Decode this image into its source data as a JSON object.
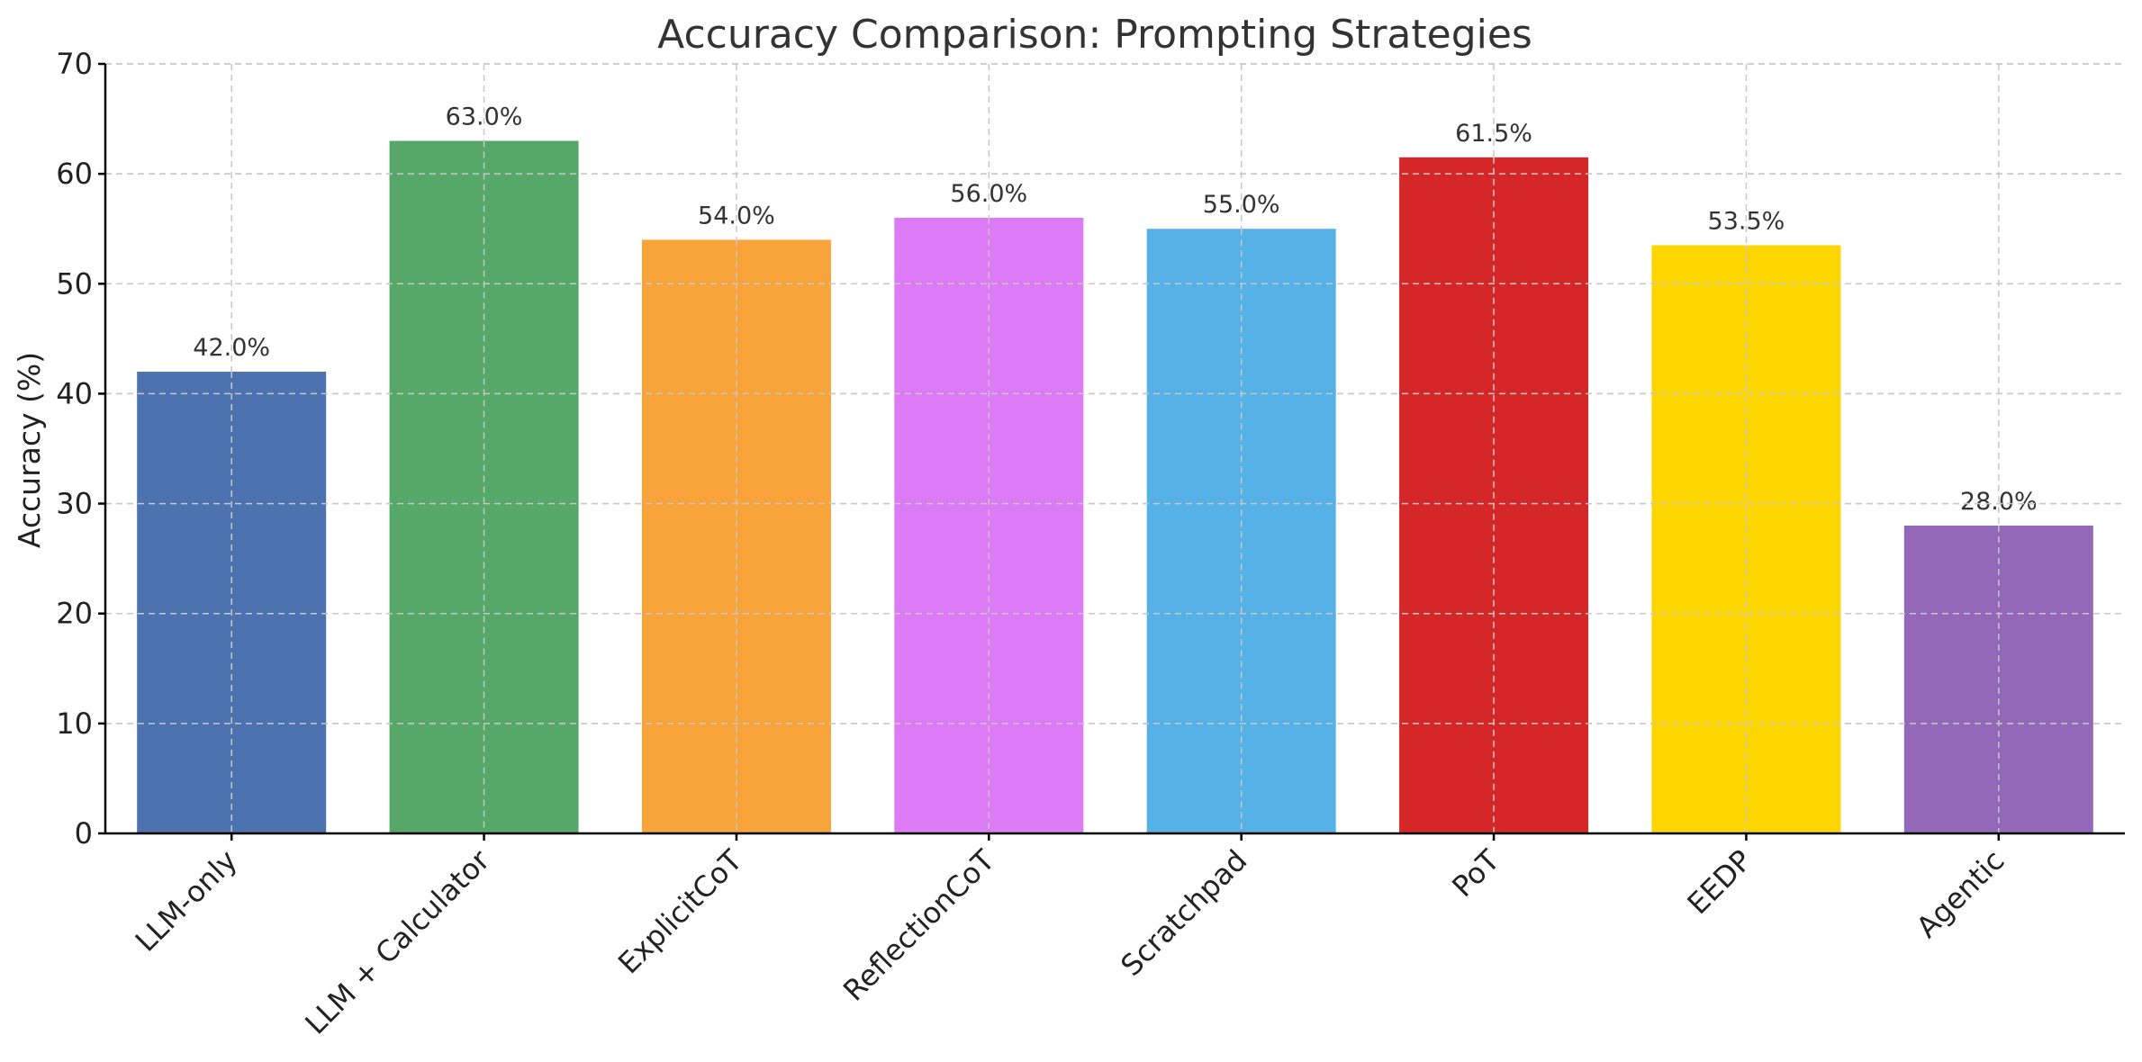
{
  "chart_data": {
    "type": "bar",
    "title": "Accuracy Comparison: Prompting Strategies",
    "xlabel": "",
    "ylabel": "Accuracy (%)",
    "ylim": [
      0,
      70
    ],
    "yticks": [
      0,
      10,
      20,
      30,
      40,
      50,
      60,
      70
    ],
    "grid": true,
    "categories": [
      "LLM-only",
      "LLM + Calculator",
      "ExplicitCoT",
      "ReflectionCoT",
      "Scratchpad",
      "PoT",
      "EEDP",
      "Agentic"
    ],
    "values": [
      42.0,
      63.0,
      54.0,
      56.0,
      55.0,
      61.5,
      53.5,
      28.0
    ],
    "data_labels": [
      "42.0%",
      "63.0%",
      "54.0%",
      "56.0%",
      "55.0%",
      "61.5%",
      "53.5%",
      "28.0%"
    ],
    "colors": [
      "#4c72b0",
      "#55a868",
      "#f9a33b",
      "#dd7af6",
      "#56b2e6",
      "#d62728",
      "#fdd600",
      "#9368b8"
    ]
  }
}
